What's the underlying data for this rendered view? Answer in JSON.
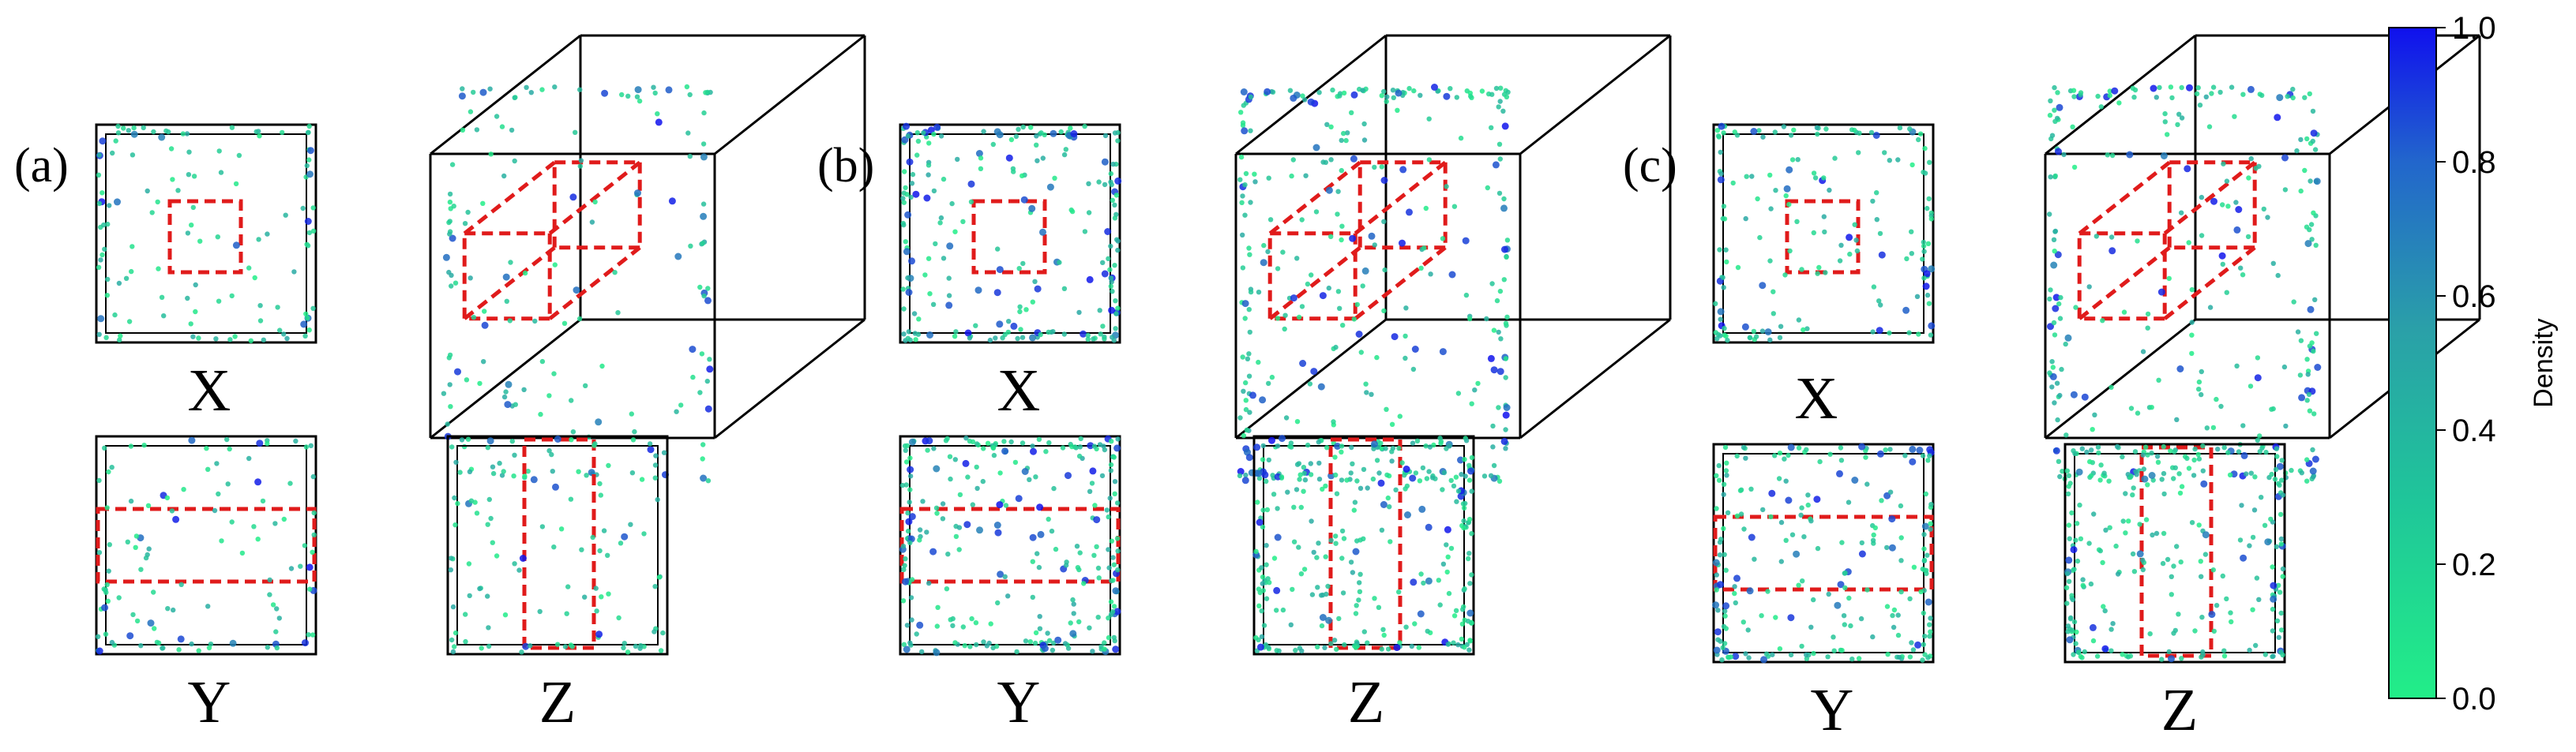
{
  "panels": [
    {
      "label": "(a)",
      "views": {
        "x": "X",
        "y": "Y",
        "z": "Z"
      }
    },
    {
      "label": "(b)",
      "views": {
        "x": "X",
        "y": "Y",
        "z": "Z"
      }
    },
    {
      "label": "(c)",
      "views": {
        "x": "X",
        "y": "Y",
        "z": "Z"
      }
    }
  ],
  "colorbar": {
    "label": "Density",
    "ticks": [
      "0.0",
      "0.2",
      "0.4",
      "0.6",
      "0.8",
      "1.0"
    ],
    "range": [
      0.0,
      1.0
    ],
    "color_low": "#22ee88",
    "color_mid": "#2aa0a8",
    "color_high": "#1010ee"
  },
  "colors": {
    "frame": "#000000",
    "highlight_box": "#e01b1b"
  }
}
